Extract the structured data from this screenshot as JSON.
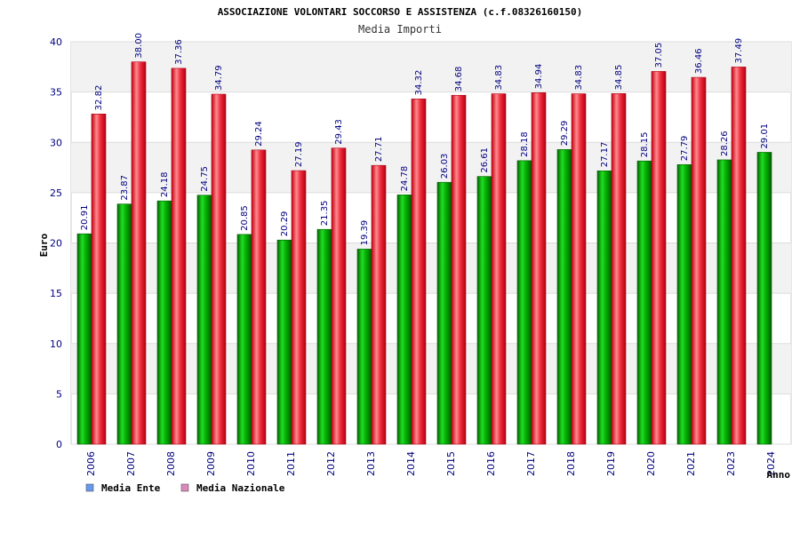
{
  "chart_data": {
    "type": "bar",
    "title": "ASSOCIAZIONE VOLONTARI SOCCORSO E ASSISTENZA (c.f.08326160150)",
    "subtitle": "Media Importi",
    "xlabel": "Anno",
    "ylabel": "Euro",
    "ylim": [
      0,
      40
    ],
    "yticks": [
      "0",
      "5",
      "10",
      "15",
      "20",
      "25",
      "30",
      "35",
      "40"
    ],
    "categories": [
      "2006",
      "2007",
      "2008",
      "2009",
      "2010",
      "2011",
      "2012",
      "2013",
      "2014",
      "2015",
      "2016",
      "2017",
      "2018",
      "2019",
      "2020",
      "2021",
      "2023",
      "2024"
    ],
    "series": [
      {
        "name": "Media Ente",
        "color": "#00a000",
        "values": [
          20.91,
          23.87,
          24.18,
          24.75,
          20.85,
          20.29,
          21.35,
          19.39,
          24.78,
          26.03,
          26.61,
          28.18,
          29.29,
          27.17,
          28.15,
          27.79,
          28.26,
          29.01
        ],
        "labels": [
          "20.91",
          "23.87",
          "24.18",
          "24.75",
          "20.85",
          "20.29",
          "21.35",
          "19.39",
          "24.78",
          "26.03",
          "26.61",
          "28.18",
          "29.29",
          "27.17",
          "28.15",
          "27.79",
          "28.26",
          "29.01"
        ]
      },
      {
        "name": "Media Nazionale",
        "color": "#e8202a",
        "values": [
          32.82,
          38.0,
          37.36,
          34.79,
          29.24,
          27.19,
          29.43,
          27.71,
          34.32,
          34.68,
          34.83,
          34.94,
          34.83,
          34.85,
          37.05,
          36.46,
          37.49,
          null
        ],
        "labels": [
          "32.82",
          "38.00",
          "37.36",
          "34.79",
          "29.24",
          "27.19",
          "29.43",
          "27.71",
          "34.32",
          "34.68",
          "34.83",
          "34.94",
          "34.83",
          "34.85",
          "37.05",
          "36.46",
          "37.49",
          null
        ]
      }
    ],
    "legend": {
      "position": "bottom-left",
      "items": [
        {
          "label": "Media Ente",
          "swatch": "#6699ee"
        },
        {
          "label": "Media Nazionale",
          "swatch": "#dd88bb"
        }
      ]
    },
    "grid": true
  }
}
